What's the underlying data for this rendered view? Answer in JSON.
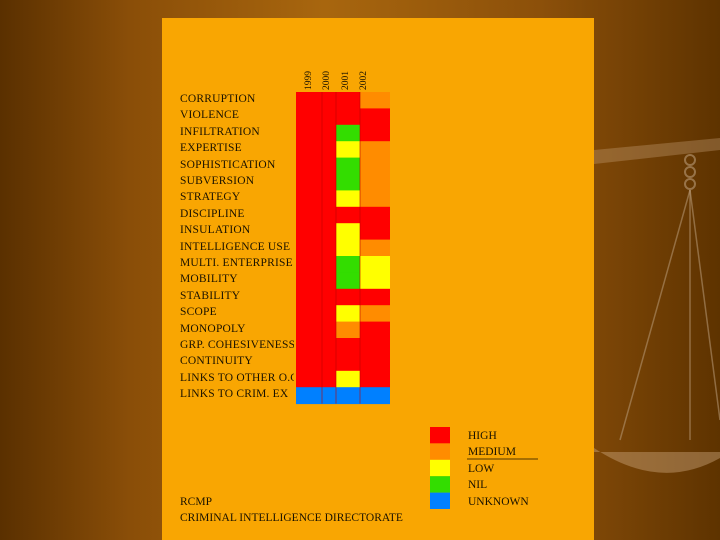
{
  "chart_data": {
    "type": "heatmap",
    "columns": [
      "1999",
      "2000",
      "2001",
      "2002"
    ],
    "rows": [
      {
        "label": "CORRUPTION",
        "values": [
          "HIGH",
          "HIGH",
          "HIGH",
          "MEDIUM"
        ]
      },
      {
        "label": "VIOLENCE",
        "values": [
          "HIGH",
          "HIGH",
          "HIGH",
          "HIGH"
        ]
      },
      {
        "label": "INFILTRATION",
        "values": [
          "HIGH",
          "HIGH",
          "NIL",
          "HIGH"
        ]
      },
      {
        "label": "EXPERTISE",
        "values": [
          "HIGH",
          "HIGH",
          "LOW",
          "MEDIUM"
        ]
      },
      {
        "label": "SOPHISTICATION",
        "values": [
          "HIGH",
          "HIGH",
          "NIL",
          "MEDIUM"
        ]
      },
      {
        "label": "SUBVERSION",
        "values": [
          "HIGH",
          "HIGH",
          "NIL",
          "MEDIUM"
        ]
      },
      {
        "label": "STRATEGY",
        "values": [
          "HIGH",
          "HIGH",
          "LOW",
          "MEDIUM"
        ]
      },
      {
        "label": "DISCIPLINE",
        "values": [
          "HIGH",
          "HIGH",
          "HIGH",
          "HIGH"
        ]
      },
      {
        "label": "INSULATION",
        "values": [
          "HIGH",
          "HIGH",
          "LOW",
          "HIGH"
        ]
      },
      {
        "label": "INTELLIGENCE USE",
        "values": [
          "HIGH",
          "HIGH",
          "LOW",
          "MEDIUM"
        ]
      },
      {
        "label": "MULTI. ENTERPRISE",
        "values": [
          "HIGH",
          "HIGH",
          "NIL",
          "LOW"
        ]
      },
      {
        "label": "MOBILITY",
        "values": [
          "HIGH",
          "HIGH",
          "NIL",
          "LOW"
        ]
      },
      {
        "label": "STABILITY",
        "values": [
          "HIGH",
          "HIGH",
          "HIGH",
          "HIGH"
        ]
      },
      {
        "label": "SCOPE",
        "values": [
          "HIGH",
          "HIGH",
          "LOW",
          "MEDIUM"
        ]
      },
      {
        "label": "MONOPOLY",
        "values": [
          "HIGH",
          "HIGH",
          "MEDIUM",
          "HIGH"
        ]
      },
      {
        "label": "GRP. COHESIVENESS",
        "values": [
          "HIGH",
          "HIGH",
          "HIGH",
          "HIGH"
        ]
      },
      {
        "label": "CONTINUITY",
        "values": [
          "HIGH",
          "HIGH",
          "HIGH",
          "HIGH"
        ]
      },
      {
        "label": "LINKS TO OTHER O.C.",
        "values": [
          "HIGH",
          "HIGH",
          "LOW",
          "HIGH"
        ]
      },
      {
        "label": "LINKS TO CRIM. EX",
        "values": [
          "UNKNOWN",
          "UNKNOWN",
          "UNKNOWN",
          "UNKNOWN"
        ]
      }
    ],
    "legend": [
      {
        "label": "HIGH",
        "color": "#ff0000"
      },
      {
        "label": "MEDIUM",
        "color": "#ff8c00"
      },
      {
        "label": "LOW",
        "color": "#ffff00"
      },
      {
        "label": "NIL",
        "color": "#33dd00"
      },
      {
        "label": "UNKNOWN",
        "color": "#0080ff"
      }
    ]
  },
  "footer": {
    "line1": "RCMP",
    "line2": "CRIMINAL INTELLIGENCE DIRECTORATE"
  }
}
